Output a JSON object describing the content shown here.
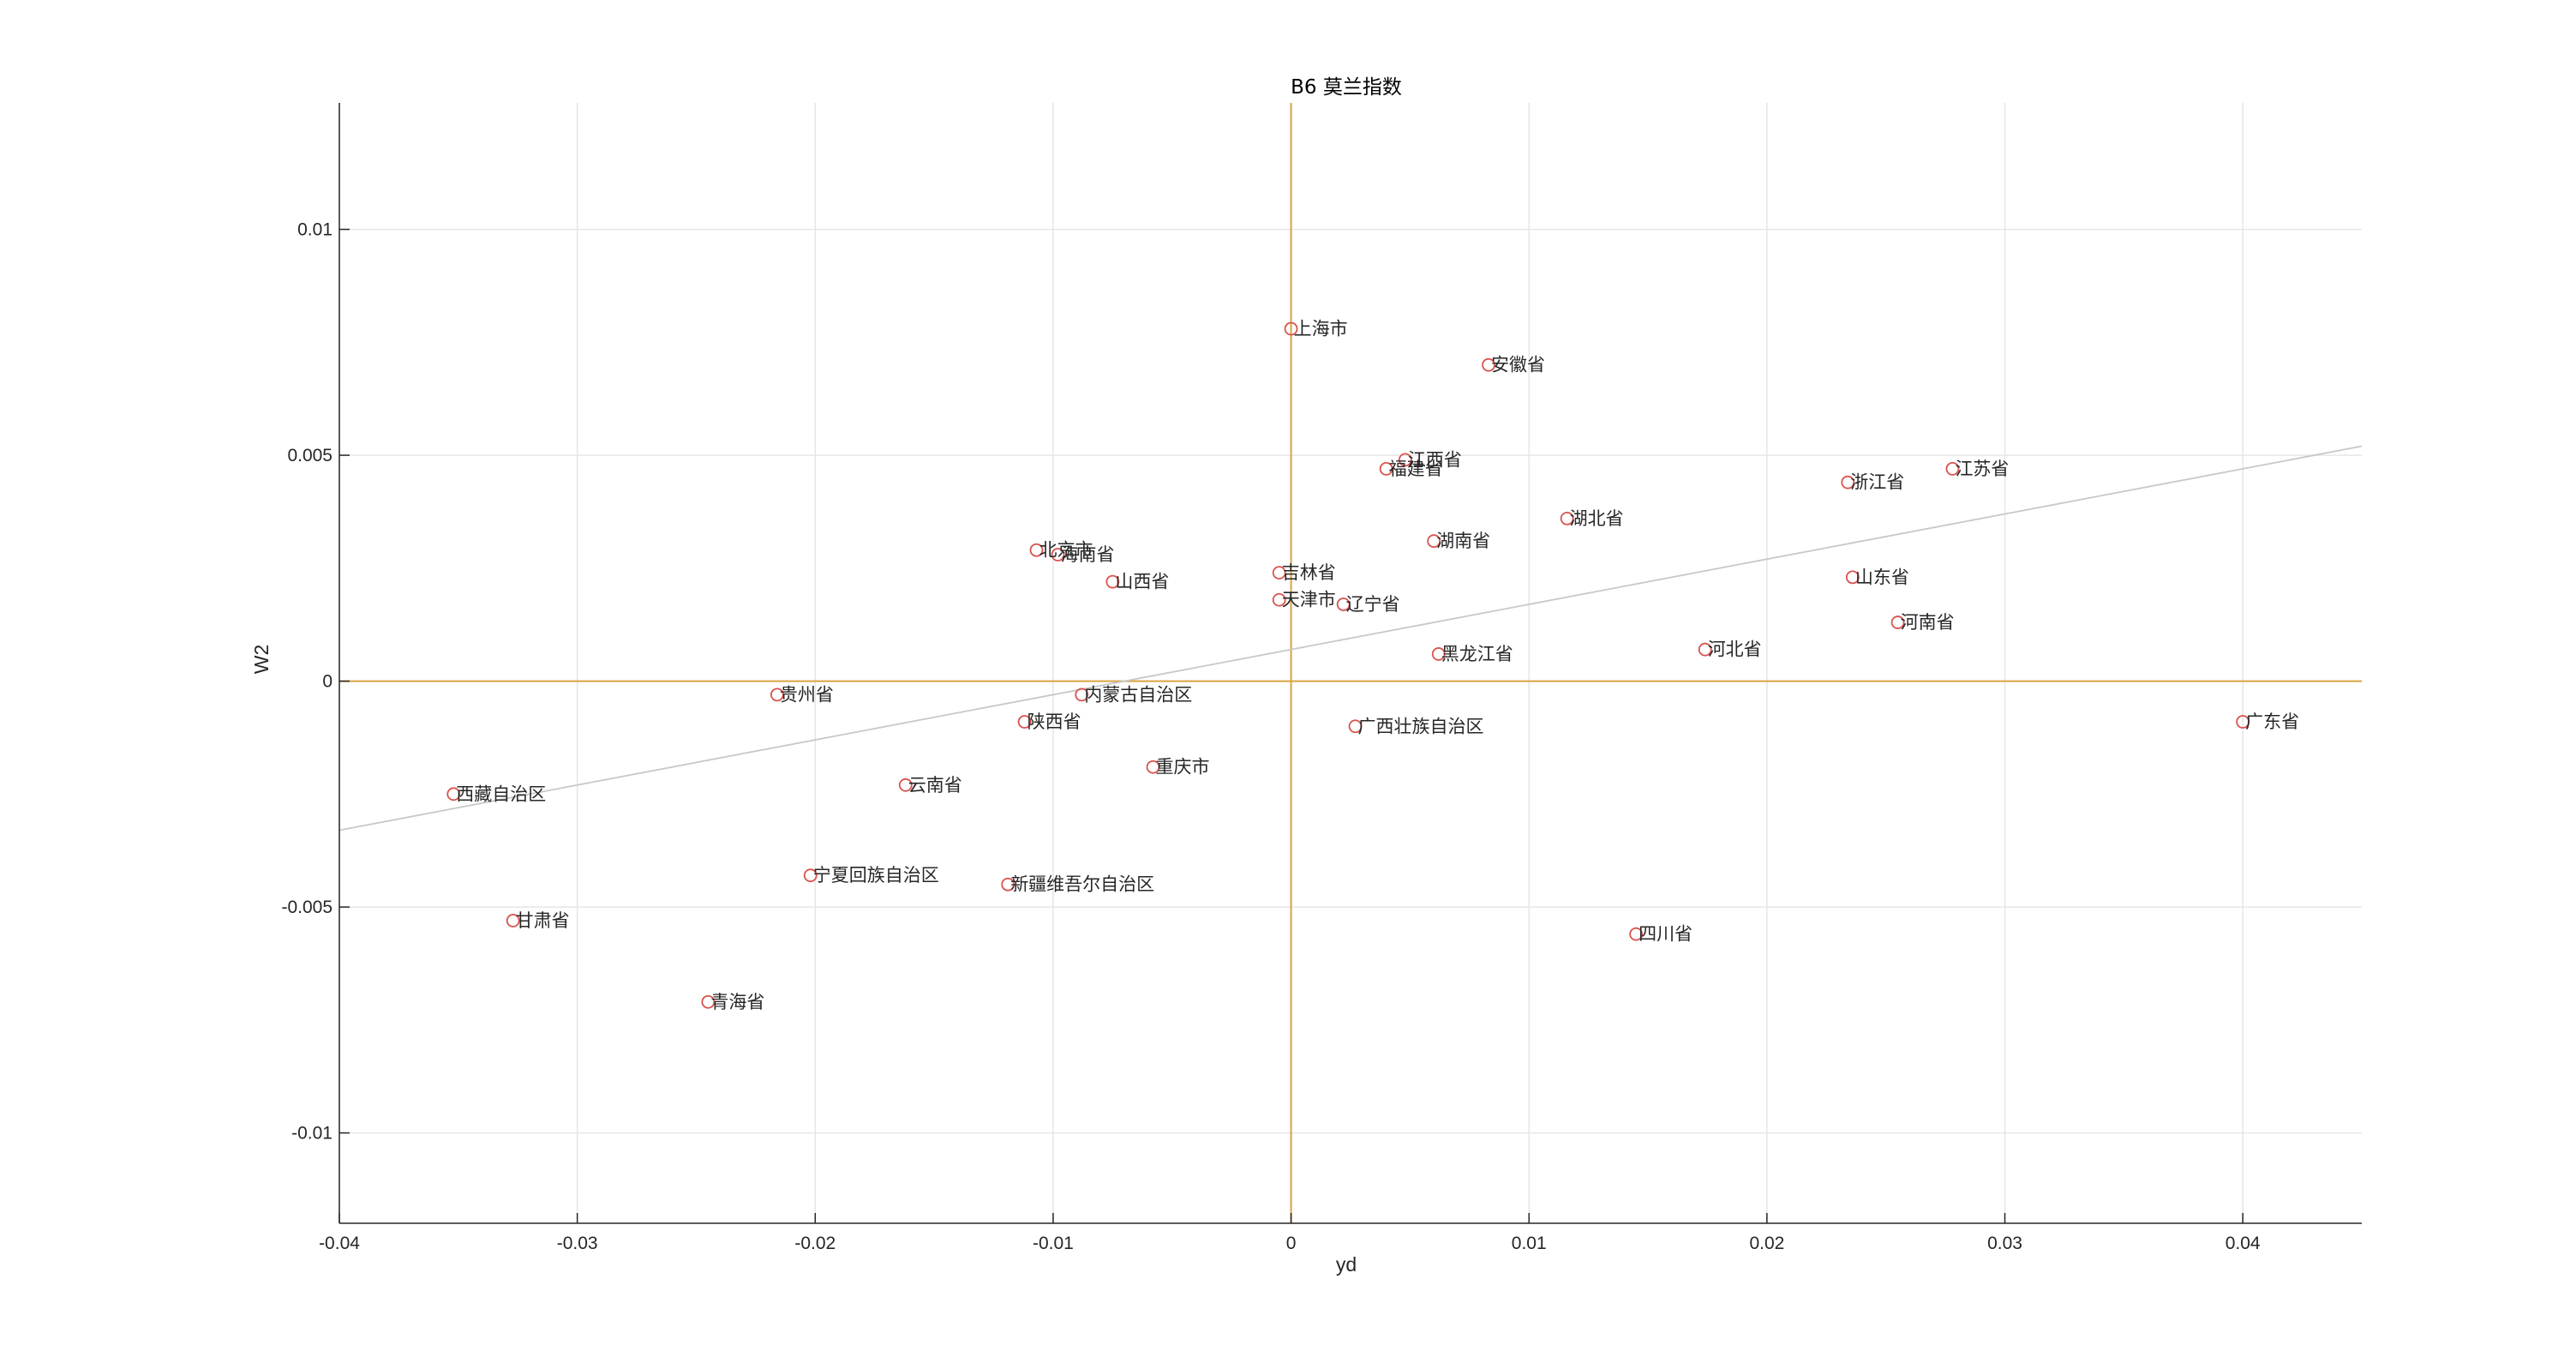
{
  "chart_data": {
    "type": "scatter",
    "title": "B6 莫兰指数",
    "xlabel": "yd",
    "ylabel": "W2",
    "xlim": [
      -0.04,
      0.045
    ],
    "ylim": [
      -0.012,
      0.0128
    ],
    "xticks": [
      -0.04,
      -0.03,
      -0.02,
      -0.01,
      0,
      0.01,
      0.02,
      0.03,
      0.04
    ],
    "xtick_labels": [
      "-0.04",
      "-0.03",
      "-0.02",
      "-0.01",
      "0",
      "0.01",
      "0.02",
      "0.03",
      "0.04"
    ],
    "yticks": [
      -0.01,
      -0.005,
      0,
      0.005,
      0.01
    ],
    "ytick_labels": [
      "-0.01",
      "-0.005",
      "0",
      "0.005",
      "0.01"
    ],
    "grid": true,
    "fit_line": {
      "slope": 0.1,
      "intercept": 0.0007
    },
    "colors": {
      "marker": "#d9534f",
      "reference_lines": "#d9a441",
      "fit_line": "#c8c8c8",
      "grid": "#e6e6e6",
      "axes": "#262626"
    },
    "points": [
      {
        "label": "上海市",
        "x": 0.0,
        "y": 0.0078
      },
      {
        "label": "安徽省",
        "x": 0.0083,
        "y": 0.007
      },
      {
        "label": "江西省",
        "x": 0.0048,
        "y": 0.0049
      },
      {
        "label": "福建省",
        "x": 0.004,
        "y": 0.0047
      },
      {
        "label": "江苏省",
        "x": 0.0278,
        "y": 0.0047
      },
      {
        "label": "浙江省",
        "x": 0.0234,
        "y": 0.0044
      },
      {
        "label": "湖北省",
        "x": 0.0116,
        "y": 0.0036
      },
      {
        "label": "湖南省",
        "x": 0.006,
        "y": 0.0031
      },
      {
        "label": "北京市",
        "x": -0.0107,
        "y": 0.0029
      },
      {
        "label": "海南省",
        "x": -0.0098,
        "y": 0.0028
      },
      {
        "label": "吉林省",
        "x": -0.0005,
        "y": 0.0024
      },
      {
        "label": "山东省",
        "x": 0.0236,
        "y": 0.0023
      },
      {
        "label": "山西省",
        "x": -0.0075,
        "y": 0.0022
      },
      {
        "label": "天津市",
        "x": -0.0005,
        "y": 0.0018
      },
      {
        "label": "辽宁省",
        "x": 0.0022,
        "y": 0.0017
      },
      {
        "label": "河南省",
        "x": 0.0255,
        "y": 0.0013
      },
      {
        "label": "河北省",
        "x": 0.0174,
        "y": 0.0007
      },
      {
        "label": "黑龙江省",
        "x": 0.0062,
        "y": 0.0006
      },
      {
        "label": "贵州省",
        "x": -0.0216,
        "y": -0.0003
      },
      {
        "label": "内蒙古自治区",
        "x": -0.0088,
        "y": -0.0003
      },
      {
        "label": "陕西省",
        "x": -0.0112,
        "y": -0.0009
      },
      {
        "label": "广西壮族自治区",
        "x": 0.0027,
        "y": -0.001
      },
      {
        "label": "广东省",
        "x": 0.04,
        "y": -0.0009
      },
      {
        "label": "重庆市",
        "x": -0.0058,
        "y": -0.0019
      },
      {
        "label": "云南省",
        "x": -0.0162,
        "y": -0.0023
      },
      {
        "label": "西藏自治区",
        "x": -0.0352,
        "y": -0.0025
      },
      {
        "label": "宁夏回族自治区",
        "x": -0.0202,
        "y": -0.0043
      },
      {
        "label": "新疆维吾尔自治区",
        "x": -0.0119,
        "y": -0.0045
      },
      {
        "label": "甘肃省",
        "x": -0.0327,
        "y": -0.0053
      },
      {
        "label": "四川省",
        "x": 0.0145,
        "y": -0.0056
      },
      {
        "label": "青海省",
        "x": -0.0245,
        "y": -0.0071
      }
    ]
  }
}
